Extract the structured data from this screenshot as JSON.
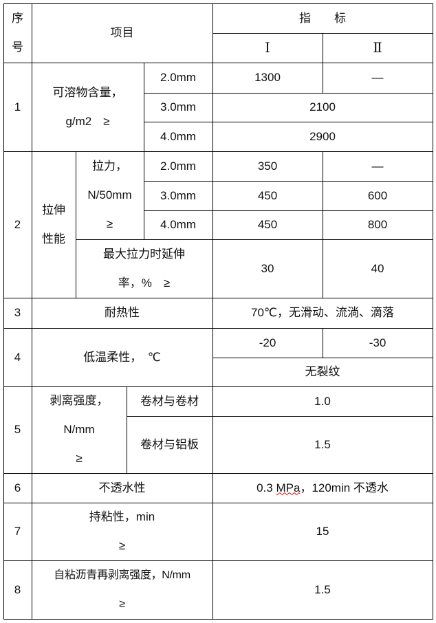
{
  "header": {
    "seq": "序\n号",
    "item": "项目",
    "index": "指　　标",
    "grade1": "Ⅰ",
    "grade2": "Ⅱ"
  },
  "rows": {
    "r1": {
      "no": "1",
      "item": "可溶物含量，\ng/m2　≥",
      "t1": "2.0mm",
      "t2": "3.0mm",
      "t3": "4.0mm",
      "v1a": "1300",
      "v1b": "—",
      "v2": "2100",
      "v3": "2900"
    },
    "r2": {
      "no": "2",
      "group": "拉伸\n性能",
      "force": "拉力，\nN/50mm\n≥",
      "t1": "2.0mm",
      "t2": "3.0mm",
      "t3": "4.0mm",
      "v1a": "350",
      "v1b": "—",
      "v2a": "450",
      "v2b": "600",
      "v3a": "450",
      "v3b": "800",
      "elong": "最大拉力时延伸\n率，%　≥",
      "elonga": "30",
      "elongb": "40"
    },
    "r3": {
      "no": "3",
      "item": "耐热性",
      "value": "70℃，无滑动、流淌、滴落"
    },
    "r4": {
      "no": "4",
      "item": "低温柔性，　℃",
      "va": "-20",
      "vb": "-30",
      "note": "无裂纹"
    },
    "r5": {
      "no": "5",
      "item": "剥离强度，\nN/mm\n≥",
      "s1": "卷材与卷材",
      "s2": "卷材与铝板",
      "v1": "1.0",
      "v2": "1.5"
    },
    "r6": {
      "no": "6",
      "item": "不透水性",
      "value_a": "0.3 ",
      "value_b": "MPa",
      "value_c": "，120min 不透水"
    },
    "r7": {
      "no": "7",
      "item": "持粘性，min\n≥",
      "value": "15"
    },
    "r8": {
      "no": "8",
      "item": "自粘沥青再剥离强度，N/mm\n≥",
      "value": "1.5"
    }
  }
}
